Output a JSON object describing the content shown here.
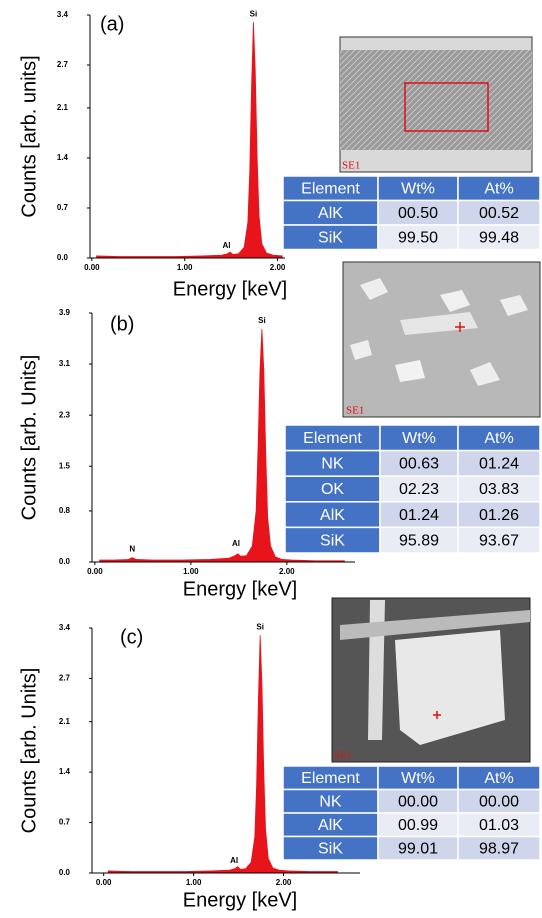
{
  "chart_data": [
    {
      "type": "area",
      "title": "(a)",
      "ylabel": "Counts [arb. units]",
      "xlabel": "Energy [keV]",
      "color": "#e8141c",
      "x": [
        0.05,
        0.3,
        0.6,
        0.9,
        1.2,
        1.4,
        1.46,
        1.49,
        1.52,
        1.58,
        1.64,
        1.68,
        1.7,
        1.72,
        1.74,
        1.76,
        1.78,
        1.8,
        1.83,
        1.88,
        1.95,
        2.05
      ],
      "values": [
        0.03,
        0.02,
        0.02,
        0.02,
        0.03,
        0.04,
        0.06,
        0.08,
        0.05,
        0.06,
        0.15,
        0.5,
        1.2,
        2.4,
        3.3,
        2.6,
        1.4,
        0.6,
        0.2,
        0.07,
        0.04,
        0.03
      ],
      "xlim": [
        -0.02,
        2.08
      ],
      "ylim": [
        0,
        3.4
      ],
      "xticks": [
        {
          "value": 0,
          "label": "0.00"
        },
        {
          "value": 1,
          "label": "1.00"
        },
        {
          "value": 2,
          "label": "2.00"
        }
      ],
      "yticks": [
        {
          "value": 0,
          "label": "0.0"
        },
        0.7,
        1.4,
        2.1,
        2.7,
        3.4
      ],
      "annotations": [
        "Si",
        "Al"
      ]
    },
    {
      "type": "area",
      "title": "(b)",
      "ylabel": "Counts [arb. Units]",
      "xlabel": "Energy [keV]",
      "color": "#e8141c",
      "x": [
        0.05,
        0.2,
        0.35,
        0.39,
        0.43,
        0.6,
        0.9,
        1.2,
        1.4,
        1.46,
        1.49,
        1.52,
        1.58,
        1.64,
        1.68,
        1.7,
        1.72,
        1.74,
        1.76,
        1.78,
        1.8,
        1.83,
        1.88,
        1.95,
        2.05,
        2.3,
        2.6
      ],
      "values": [
        0.03,
        0.03,
        0.04,
        0.07,
        0.04,
        0.03,
        0.03,
        0.04,
        0.06,
        0.1,
        0.13,
        0.09,
        0.1,
        0.25,
        0.8,
        1.8,
        3.0,
        3.65,
        3.0,
        1.7,
        0.7,
        0.25,
        0.08,
        0.04,
        0.03,
        0.02,
        0.02
      ],
      "xlim": [
        -0.03,
        2.71
      ],
      "ylim": [
        0,
        3.9
      ],
      "xticks": [
        {
          "value": 0,
          "label": "0.00"
        },
        {
          "value": 1,
          "label": "1.00"
        },
        {
          "value": 2,
          "label": "2.00"
        }
      ],
      "yticks": [
        {
          "value": 0,
          "label": "0.0"
        },
        0.8,
        1.5,
        2.3,
        3.1,
        3.9
      ],
      "annotations": [
        "Si",
        "Al",
        "N"
      ]
    },
    {
      "type": "area",
      "title": "(c)",
      "ylabel": "Counts [arb. Units]",
      "xlabel": "Energy [keV]",
      "color": "#e8141c",
      "x": [
        0.05,
        0.3,
        0.6,
        0.9,
        1.2,
        1.4,
        1.46,
        1.49,
        1.52,
        1.58,
        1.64,
        1.68,
        1.7,
        1.72,
        1.74,
        1.76,
        1.78,
        1.8,
        1.83,
        1.88,
        1.95,
        2.05,
        2.3,
        2.6
      ],
      "values": [
        0.03,
        0.02,
        0.02,
        0.02,
        0.03,
        0.04,
        0.06,
        0.09,
        0.05,
        0.06,
        0.15,
        0.5,
        1.2,
        2.4,
        3.3,
        2.6,
        1.4,
        0.6,
        0.2,
        0.07,
        0.04,
        0.03,
        0.02,
        0.02
      ],
      "xlim": [
        -0.13,
        2.85
      ],
      "ylim": [
        0,
        3.4
      ],
      "xticks": [
        {
          "value": 0,
          "label": "0.00"
        },
        {
          "value": 1,
          "label": "1.00"
        },
        {
          "value": 2,
          "label": "2.00"
        }
      ],
      "yticks": [
        {
          "value": 0,
          "label": "0.0"
        },
        0.7,
        1.4,
        2.1,
        2.7,
        3.4
      ],
      "annotations": [
        "Si",
        "Al"
      ]
    }
  ],
  "images": [
    "SE1",
    "SE1",
    "SE1"
  ],
  "tables": [
    {
      "columns": [
        "Element",
        "Wt%",
        "At%"
      ],
      "rows": [
        [
          "AlK",
          "00.50",
          "00.52"
        ],
        [
          "SiK",
          "99.50",
          "99.48"
        ]
      ]
    },
    {
      "columns": [
        "Element",
        "Wt%",
        "At%"
      ],
      "rows": [
        [
          "NK",
          "00.63",
          "01.24"
        ],
        [
          "OK",
          "02.23",
          "03.83"
        ],
        [
          "AlK",
          "01.24",
          "01.26"
        ],
        [
          "SiK",
          "95.89",
          "93.67"
        ]
      ]
    },
    {
      "columns": [
        "Element",
        "Wt%",
        "At%"
      ],
      "rows": [
        [
          "NK",
          "00.00",
          "00.00"
        ],
        [
          "AlK",
          "00.99",
          "01.03"
        ],
        [
          "SiK",
          "99.01",
          "98.97"
        ]
      ]
    }
  ]
}
